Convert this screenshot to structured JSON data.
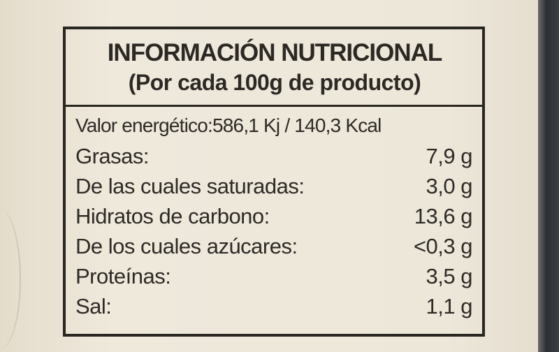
{
  "label": {
    "title": "INFORMACIÓN NUTRICIONAL",
    "subtitle": "(Por cada 100g de producto)",
    "energy": "Valor energético:586,1 Kj / 140,3 Kcal",
    "rows": [
      {
        "name": "Grasas:",
        "value": "7,9 g"
      },
      {
        "name": "De las cuales saturadas:",
        "value": "3,0 g"
      },
      {
        "name": "Hidratos de carbono:",
        "value": "13,6 g"
      },
      {
        "name": "De los cuales azúcares:",
        "value": "<0,3 g"
      },
      {
        "name": "Proteínas:",
        "value": "3,5 g"
      },
      {
        "name": "Sal:",
        "value": "1,1 g"
      }
    ]
  },
  "colors": {
    "paper": "#ece6d8",
    "ink": "#2c2824"
  }
}
